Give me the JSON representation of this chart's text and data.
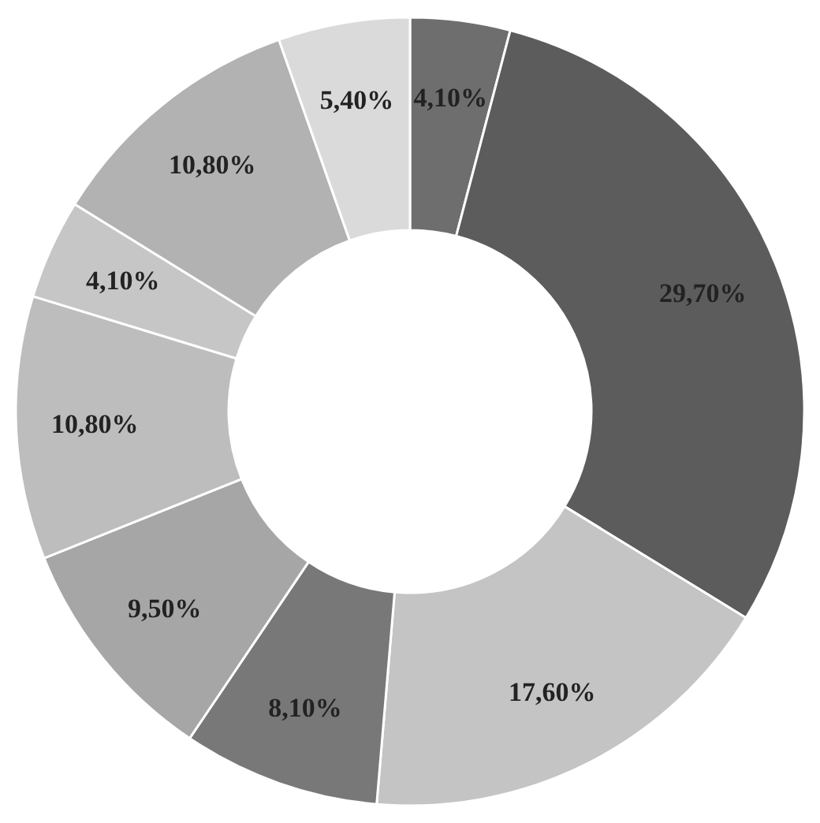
{
  "chart_data": {
    "type": "donut",
    "categories": [
      null,
      null,
      null,
      null,
      null,
      null,
      null,
      null,
      null
    ],
    "values": [
      4.1,
      29.7,
      17.6,
      8.1,
      9.5,
      10.8,
      4.1,
      10.8,
      5.4
    ],
    "value_labels": [
      "4,10%",
      "29,70%",
      "17,60%",
      "8,10%",
      "9,50%",
      "10,80%",
      "4,10%",
      "10,80%",
      "5,40%"
    ],
    "colors": [
      "#6e6e6e",
      "#5c5c5c",
      "#c4c4c4",
      "#787878",
      "#a6a6a6",
      "#bdbdbd",
      "#c6c6c6",
      "#b2b2b2",
      "#dadada"
    ]
  }
}
